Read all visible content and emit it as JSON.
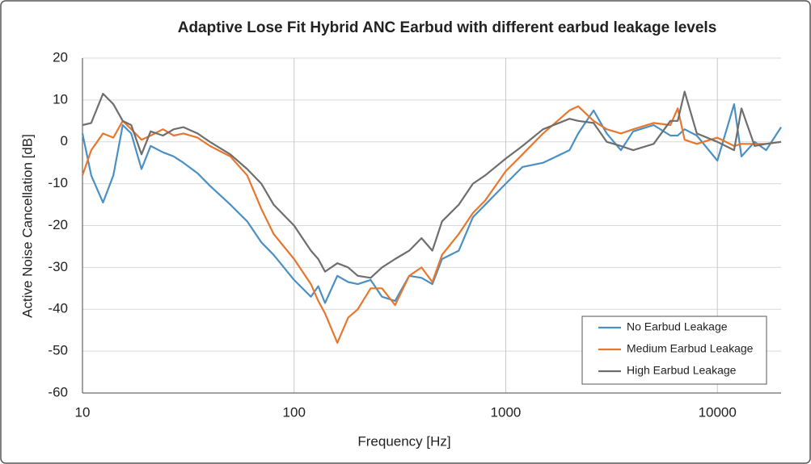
{
  "chart_data": {
    "type": "line",
    "title": "Adaptive Lose Fit Hybrid ANC Earbud with different earbud leakage levels",
    "x_label": "Frequency  [Hz]",
    "y_label": "Active Noise Cancellation  [dB]",
    "x_scale": "log",
    "xlim": [
      10,
      20000
    ],
    "ylim": [
      -60,
      20
    ],
    "xticks": [
      10,
      100,
      1000,
      10000
    ],
    "yticks": [
      -60,
      -50,
      -40,
      -30,
      -20,
      -10,
      0,
      10,
      20
    ],
    "grid": true,
    "legend": "lower right",
    "x": [
      10,
      11,
      12.5,
      14,
      15.5,
      17,
      19,
      21,
      24,
      27,
      30,
      35,
      40,
      50,
      60,
      70,
      80,
      100,
      120,
      130,
      140,
      160,
      180,
      200,
      230,
      260,
      300,
      350,
      400,
      450,
      500,
      600,
      700,
      800,
      1000,
      1200,
      1500,
      2000,
      2200,
      2600,
      3000,
      3500,
      4000,
      5000,
      6000,
      6500,
      7000,
      8000,
      10000,
      12000,
      13000,
      15000,
      17000,
      20000
    ],
    "series": [
      {
        "name": "No Earbud Leakage",
        "color": "#4a90c4",
        "values": [
          2,
          -8,
          -14.5,
          -8,
          4,
          2,
          -6.5,
          -1,
          -2.5,
          -3.5,
          -5,
          -7.5,
          -10.5,
          -15,
          -19,
          -24,
          -27,
          -33,
          -37,
          -34.5,
          -38.5,
          -32,
          -33.5,
          -34,
          -33,
          -37,
          -38,
          -32,
          -32.5,
          -34,
          -28,
          -26,
          -18,
          -15,
          -10,
          -6,
          -5,
          -2,
          2,
          7.5,
          2,
          -2,
          2.5,
          4,
          1.5,
          1.5,
          3,
          1.5,
          -4.5,
          9,
          -3.5,
          0,
          -2,
          3.5
        ]
      },
      {
        "name": "Medium Earbud Leakage",
        "color": "#e8772e",
        "values": [
          -8,
          -2,
          2,
          1,
          5,
          3,
          0.5,
          1.5,
          3,
          1.5,
          2,
          1,
          -1,
          -3.5,
          -8,
          -16,
          -22,
          -28,
          -34,
          -38,
          -41,
          -48,
          -42,
          -40,
          -35,
          -35,
          -39,
          -32,
          -30,
          -33.5,
          -27,
          -22,
          -17,
          -14,
          -7,
          -3,
          2,
          7.5,
          8.5,
          5,
          3,
          2,
          3,
          4.5,
          4,
          8,
          0.5,
          -0.5,
          1,
          -1,
          -0.5,
          -0.5,
          -0.5,
          0
        ]
      },
      {
        "name": "High Earbud Leakage",
        "color": "#6e6e6e",
        "values": [
          4,
          4.5,
          11.5,
          9,
          5,
          4,
          -3,
          2.5,
          1.5,
          3,
          3.5,
          2,
          0,
          -3,
          -6.5,
          -10,
          -15,
          -20,
          -26,
          -28,
          -31,
          -29,
          -30,
          -32,
          -32.5,
          -30,
          -28,
          -26,
          -23,
          -26,
          -19,
          -15,
          -10,
          -8,
          -4,
          -1,
          3,
          5.5,
          5,
          4.5,
          0,
          -1,
          -2,
          -0.5,
          5,
          5,
          12,
          2,
          0,
          -2,
          8,
          -1,
          -0.5,
          0
        ]
      }
    ]
  }
}
